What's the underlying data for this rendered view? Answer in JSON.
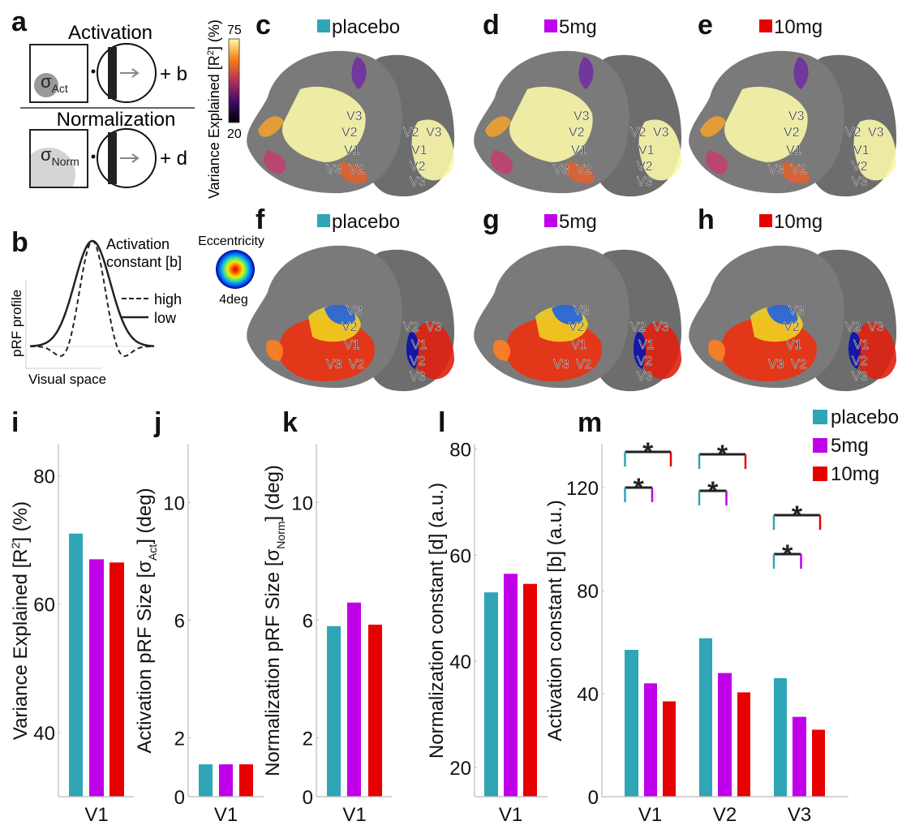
{
  "colors": {
    "placebo": "#2fa5b6",
    "5mg": "#bf00e8",
    "10mg": "#e60000"
  },
  "panel_a": {
    "letter": "a",
    "activation_title": "Activation",
    "sigma_act": "σ",
    "sigma_act_sub": "Act",
    "plus_b": "+ b",
    "normalization_title": "Normalization",
    "sigma_norm": "σ",
    "sigma_norm_sub": "Norm",
    "plus_d": "+ d"
  },
  "panel_b": {
    "letter": "b",
    "annotation_line1": "Activation",
    "annotation_line2": "constant [b]",
    "legend_high": "high",
    "legend_low": "low",
    "ylabel": "pRF profile",
    "xlabel": "Visual space"
  },
  "colorbar": {
    "label_pre": "Variance Explained [R",
    "label_sup": "2",
    "label_post": "] (%)",
    "max": "75",
    "min": "20"
  },
  "eccentricity_legend": {
    "title": "Eccentricity",
    "radius": "4deg"
  },
  "area_labels": [
    "V3",
    "V2",
    "V1",
    "V3",
    "V2",
    "V2",
    "V3",
    "V1",
    "V2",
    "V3"
  ],
  "brain_panels": [
    {
      "letter": "c",
      "condition": "placebo",
      "map": "variance"
    },
    {
      "letter": "d",
      "condition": "5mg",
      "map": "variance"
    },
    {
      "letter": "e",
      "condition": "10mg",
      "map": "variance"
    },
    {
      "letter": "f",
      "condition": "placebo",
      "map": "eccentricity"
    },
    {
      "letter": "g",
      "condition": "5mg",
      "map": "eccentricity"
    },
    {
      "letter": "h",
      "condition": "10mg",
      "map": "eccentricity"
    }
  ],
  "legend": [
    "placebo",
    "5mg",
    "10mg"
  ],
  "chart_data": [
    {
      "letter": "i",
      "type": "bar",
      "categories": [
        "V1"
      ],
      "ylim": [
        30,
        85
      ],
      "yticks": [
        40,
        60,
        80
      ],
      "ylabel": {
        "text": "Variance Explained [R",
        "sup": "2",
        "after": "] (%)"
      },
      "series": [
        {
          "name": "placebo",
          "values": [
            71
          ]
        },
        {
          "name": "5mg",
          "values": [
            67
          ]
        },
        {
          "name": "10mg",
          "values": [
            66.5
          ]
        }
      ]
    },
    {
      "letter": "j",
      "type": "bar",
      "categories": [
        "V1"
      ],
      "ylim": [
        0,
        12
      ],
      "yticks": [
        0,
        2,
        6,
        10
      ],
      "ylabel": {
        "text": "Activation pRF  Size [σ",
        "sub": "Act",
        "after": "] (deg)"
      },
      "series": [
        {
          "name": "placebo",
          "values": [
            1.1
          ]
        },
        {
          "name": "5mg",
          "values": [
            1.1
          ]
        },
        {
          "name": "10mg",
          "values": [
            1.1
          ]
        }
      ]
    },
    {
      "letter": "k",
      "type": "bar",
      "categories": [
        "V1"
      ],
      "ylim": [
        0,
        12
      ],
      "yticks": [
        0,
        2,
        6,
        10
      ],
      "ylabel": {
        "text": "Normalization pRF  Size [σ",
        "sub": "Norm",
        "after": "] (deg)"
      },
      "series": [
        {
          "name": "placebo",
          "values": [
            5.8
          ]
        },
        {
          "name": "5mg",
          "values": [
            6.6
          ]
        },
        {
          "name": "10mg",
          "values": [
            5.85
          ]
        }
      ]
    },
    {
      "letter": "l",
      "type": "bar",
      "categories": [
        "V1"
      ],
      "ylim": [
        14.5,
        81
      ],
      "yticks": [
        20,
        40,
        60,
        80
      ],
      "ylabel": {
        "text": "Normalization constant [d] (a.u.)"
      },
      "series": [
        {
          "name": "placebo",
          "values": [
            53
          ]
        },
        {
          "name": "5mg",
          "values": [
            56.5
          ]
        },
        {
          "name": "10mg",
          "values": [
            54.6
          ]
        }
      ]
    },
    {
      "letter": "m",
      "type": "bar",
      "categories": [
        "V1",
        "V2",
        "V3"
      ],
      "ylim": [
        0,
        137
      ],
      "yticks": [
        0,
        40,
        80,
        120
      ],
      "ylabel": {
        "text": "Activation constant [b] (a.u.)"
      },
      "series": [
        {
          "name": "placebo",
          "values": [
            57,
            61.5,
            46
          ]
        },
        {
          "name": "5mg",
          "values": [
            44,
            48,
            31
          ]
        },
        {
          "name": "10mg",
          "values": [
            37,
            40.5,
            26
          ]
        }
      ],
      "significance": [
        {
          "category": "V1",
          "pair": [
            "placebo",
            "10mg"
          ],
          "mark": "*"
        },
        {
          "category": "V1",
          "pair": [
            "placebo",
            "5mg"
          ],
          "mark": "*"
        },
        {
          "category": "V2",
          "pair": [
            "placebo",
            "10mg"
          ],
          "mark": "*"
        },
        {
          "category": "V2",
          "pair": [
            "placebo",
            "5mg"
          ],
          "mark": "*"
        },
        {
          "category": "V3",
          "pair": [
            "placebo",
            "10mg"
          ],
          "mark": "*"
        },
        {
          "category": "V3",
          "pair": [
            "placebo",
            "5mg"
          ],
          "mark": "*"
        }
      ]
    }
  ]
}
